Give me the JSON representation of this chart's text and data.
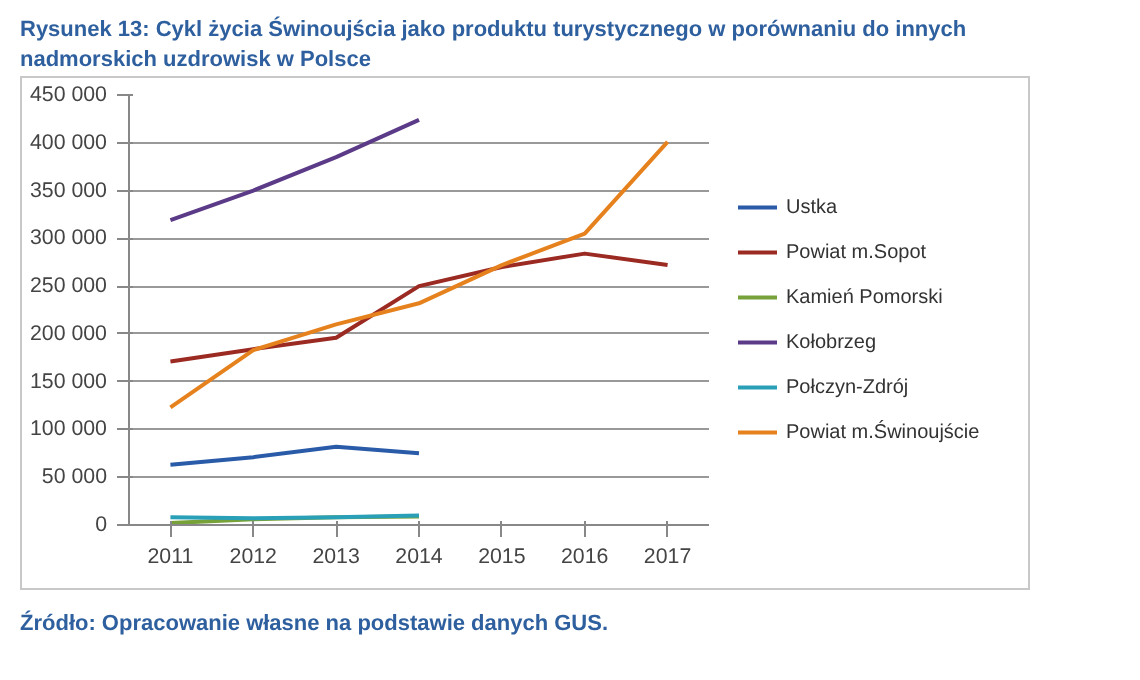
{
  "chart_data": {
    "type": "line",
    "title": "Rysunek 13: Cykl życia Świnoujścia jako produktu turystycznego w porównaniu do innych nadmorskich uzdrowisk w  Polsce",
    "categories": [
      "2011",
      "2012",
      "2013",
      "2014",
      "2015",
      "2016",
      "2017"
    ],
    "series": [
      {
        "name": "Ustka",
        "color": "#2a5ba8",
        "values": [
          63000,
          71000,
          82000,
          75000,
          null,
          null,
          null
        ]
      },
      {
        "name": "Powiat m.Sopot",
        "color": "#9b2a22",
        "values": [
          171000,
          184000,
          196000,
          250000,
          270000,
          284000,
          272000
        ]
      },
      {
        "name": "Kamień Pomorski",
        "color": "#77a23a",
        "values": [
          2000,
          6000,
          8000,
          9000,
          null,
          null,
          null
        ]
      },
      {
        "name": "Kołobrzeg",
        "color": "#5b3b88",
        "values": [
          319000,
          350000,
          385000,
          424000,
          null,
          null,
          null
        ]
      },
      {
        "name": "Połczyn-Zdrój",
        "color": "#2aa0b8",
        "values": [
          8000,
          7000,
          8000,
          10000,
          null,
          null,
          null
        ]
      },
      {
        "name": "Powiat m.Świnoujście",
        "color": "#e6821e",
        "values": [
          123000,
          183000,
          210000,
          232000,
          272000,
          305000,
          401000
        ]
      }
    ],
    "ylim": [
      0,
      450000
    ],
    "yticks": [
      {
        "value": 0,
        "label": "0"
      },
      {
        "value": 50000,
        "label": "50 000"
      },
      {
        "value": 100000,
        "label": "100 000"
      },
      {
        "value": 150000,
        "label": "150 000"
      },
      {
        "value": 200000,
        "label": "200 000"
      },
      {
        "value": 250000,
        "label": "250 000"
      },
      {
        "value": 300000,
        "label": "300 000"
      },
      {
        "value": 350000,
        "label": "350 000"
      },
      {
        "value": 400000,
        "label": "400 000"
      },
      {
        "value": 450000,
        "label": "450 000"
      }
    ],
    "grid": "y",
    "legend": "right",
    "line_style": "solid",
    "annotations": [
      "Źródło: Opracowanie własne na podstawie danych GUS."
    ]
  }
}
